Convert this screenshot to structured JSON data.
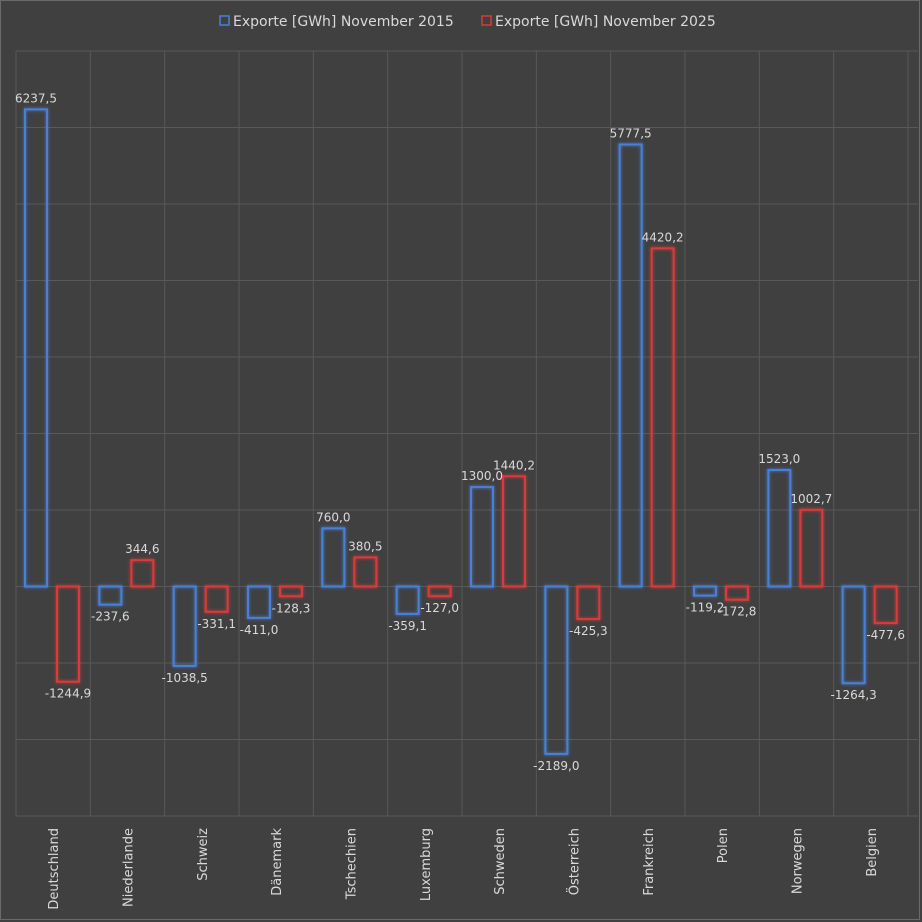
{
  "chart_data": {
    "type": "bar",
    "title": "",
    "xlabel": "",
    "ylabel": "",
    "ylim": [
      -3000,
      7000
    ],
    "grid": true,
    "legend_position": "top",
    "categories": [
      "Deutschland",
      "Niederlande",
      "Schweiz",
      "Dänemark",
      "Tschechien",
      "Luxemburg",
      "Schweden",
      "Österreich",
      "Frankreich",
      "Polen",
      "Norwegen",
      "Belgien"
    ],
    "series": [
      {
        "name": "Exporte [GWh] November 2015",
        "color": "#4a7fd4",
        "values": [
          6237.5,
          -237.6,
          -1038.5,
          -411.0,
          760.0,
          -359.1,
          1300.0,
          -2189.0,
          5777.5,
          -119.2,
          1523.0,
          -1264.3
        ],
        "labels": [
          "6237,5",
          "-237,6",
          "-1038,5",
          "-411,0",
          "760,0",
          "-359,1",
          "1300,0",
          "-2189,0",
          "5777,5",
          "-119,2",
          "1523,0",
          "-1264,3"
        ]
      },
      {
        "name": "Exporte [GWh] November 2025",
        "color": "#d83a3a",
        "values": [
          -1244.9,
          344.6,
          -331.1,
          -128.3,
          380.5,
          -127.0,
          1440.2,
          -425.3,
          4420.2,
          -172.8,
          1002.7,
          -477.6
        ],
        "labels": [
          "-1244,9",
          "344,6",
          "-331,1",
          "-128,3",
          "380,5",
          "-127,0",
          "1440,2",
          "-425,3",
          "4420,2",
          "-172,8",
          "1002,7",
          "-477,6"
        ]
      }
    ]
  }
}
